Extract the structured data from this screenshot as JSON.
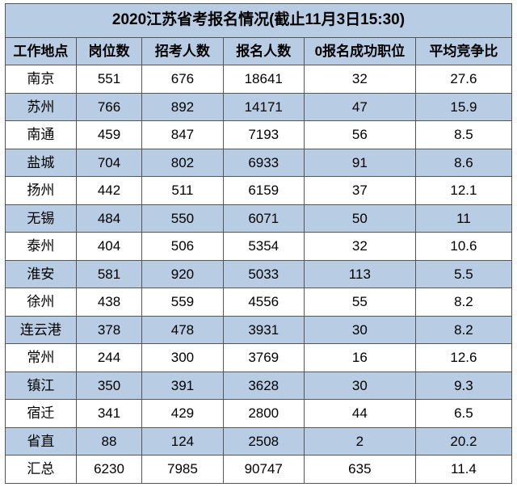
{
  "title": "2020江苏省考报名情况(截止11月3日15:30)",
  "colors": {
    "blue": "#b8cce4",
    "white": "#ffffff",
    "text": "#000000",
    "border": "#555555"
  },
  "columns": [
    {
      "key": "location",
      "label": "工作地点"
    },
    {
      "key": "positions",
      "label": "岗位数"
    },
    {
      "key": "recruit",
      "label": "招考人数"
    },
    {
      "key": "applicants",
      "label": "报名人数"
    },
    {
      "key": "zero_success",
      "label": "0报名成功职位"
    },
    {
      "key": "avg_ratio",
      "label": "平均竞争比"
    }
  ],
  "rows": [
    {
      "location": "南京",
      "positions": "551",
      "recruit": "676",
      "applicants": "18641",
      "zero_success": "32",
      "avg_ratio": "27.6"
    },
    {
      "location": "苏州",
      "positions": "766",
      "recruit": "892",
      "applicants": "14171",
      "zero_success": "47",
      "avg_ratio": "15.9"
    },
    {
      "location": "南通",
      "positions": "459",
      "recruit": "847",
      "applicants": "7193",
      "zero_success": "56",
      "avg_ratio": "8.5"
    },
    {
      "location": "盐城",
      "positions": "704",
      "recruit": "802",
      "applicants": "6933",
      "zero_success": "91",
      "avg_ratio": "8.6"
    },
    {
      "location": "扬州",
      "positions": "442",
      "recruit": "511",
      "applicants": "6159",
      "zero_success": "37",
      "avg_ratio": "12.1"
    },
    {
      "location": "无锡",
      "positions": "484",
      "recruit": "550",
      "applicants": "6071",
      "zero_success": "50",
      "avg_ratio": "11"
    },
    {
      "location": "泰州",
      "positions": "404",
      "recruit": "506",
      "applicants": "5354",
      "zero_success": "32",
      "avg_ratio": "10.6"
    },
    {
      "location": "淮安",
      "positions": "581",
      "recruit": "920",
      "applicants": "5033",
      "zero_success": "113",
      "avg_ratio": "5.5"
    },
    {
      "location": "徐州",
      "positions": "438",
      "recruit": "559",
      "applicants": "4556",
      "zero_success": "55",
      "avg_ratio": "8.2"
    },
    {
      "location": "连云港",
      "positions": "378",
      "recruit": "478",
      "applicants": "3931",
      "zero_success": "30",
      "avg_ratio": "8.2"
    },
    {
      "location": "常州",
      "positions": "244",
      "recruit": "300",
      "applicants": "3769",
      "zero_success": "16",
      "avg_ratio": "12.6"
    },
    {
      "location": "镇江",
      "positions": "350",
      "recruit": "391",
      "applicants": "3628",
      "zero_success": "30",
      "avg_ratio": "9.3"
    },
    {
      "location": "宿迁",
      "positions": "341",
      "recruit": "429",
      "applicants": "2800",
      "zero_success": "44",
      "avg_ratio": "6.5"
    },
    {
      "location": "省直",
      "positions": "88",
      "recruit": "124",
      "applicants": "2508",
      "zero_success": "2",
      "avg_ratio": "20.2"
    },
    {
      "location": "汇总",
      "positions": "6230",
      "recruit": "7985",
      "applicants": "90747",
      "zero_success": "635",
      "avg_ratio": "11.4"
    }
  ],
  "row_colors": [
    "#ffffff",
    "#b8cce4",
    "#ffffff",
    "#b8cce4",
    "#ffffff",
    "#b8cce4",
    "#ffffff",
    "#b8cce4",
    "#ffffff",
    "#b8cce4",
    "#ffffff",
    "#b8cce4",
    "#ffffff",
    "#b8cce4",
    "#ffffff"
  ],
  "title_bg": "#b8cce4",
  "header_bg": "#b8cce4"
}
